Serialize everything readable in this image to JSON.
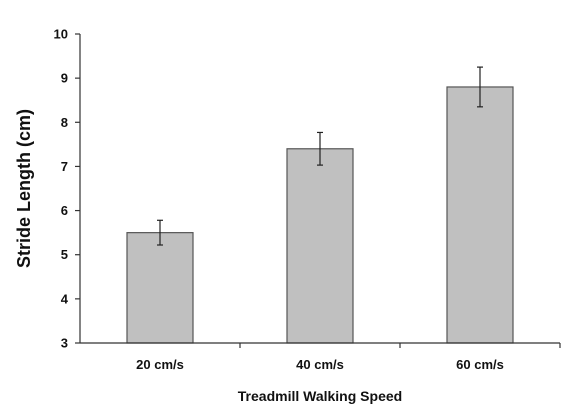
{
  "chart_data": {
    "type": "bar",
    "title": "",
    "xlabel": "Treadmill Walking Speed",
    "ylabel": "Stride Length (cm)",
    "categories": [
      "20 cm/s",
      "40 cm/s",
      "60 cm/s"
    ],
    "values": [
      5.5,
      7.4,
      8.8
    ],
    "error": [
      0.28,
      0.37,
      0.45
    ],
    "ylim": [
      3,
      10
    ],
    "yticks": [
      "3",
      "4",
      "5",
      "6",
      "7",
      "8",
      "9",
      "10"
    ],
    "grid": false,
    "bar_color": "#c0c0c0",
    "bar_edge_color": "#555555"
  }
}
